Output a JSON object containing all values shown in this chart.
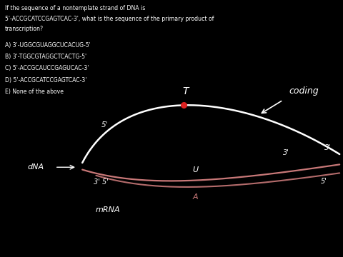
{
  "bg_color": "#000000",
  "text_color": "#ffffff",
  "white_strand_color": "#ffffff",
  "pink_strand_color": "#c87878",
  "red_dot_color": "#dd2222",
  "question_text_line1": "If the sequence of a nontemplate strand of DNA is",
  "question_text_line2": "5'-ACCGCATCCGAGTCAC-3', what is the sequence of the primary product of",
  "question_text_line3": "transcription?",
  "answers": [
    "A) 3'-UGGCGUAGGCUCACUG-5'",
    "B) 3'-TGGCGTAGGCTCACTG-5'",
    "C) 5'-ACCGCAUCCGAGUCAC-3'",
    "D) 5'-ACCGCATCCGAGTCAC-3'",
    "E) None of the above"
  ],
  "label_dna": "dNA",
  "label_mrna": "mRNA",
  "label_coding": "coding",
  "label_T": "T",
  "label_U": "U",
  "label_A": "A",
  "label_5prime_upper_left": "5'",
  "label_3prime_upper_right": "3'",
  "label_3prime_lower_mid": "3'",
  "label_3prime_5prime_left": "3' 5'",
  "label_5prime_lower_right": "5'"
}
